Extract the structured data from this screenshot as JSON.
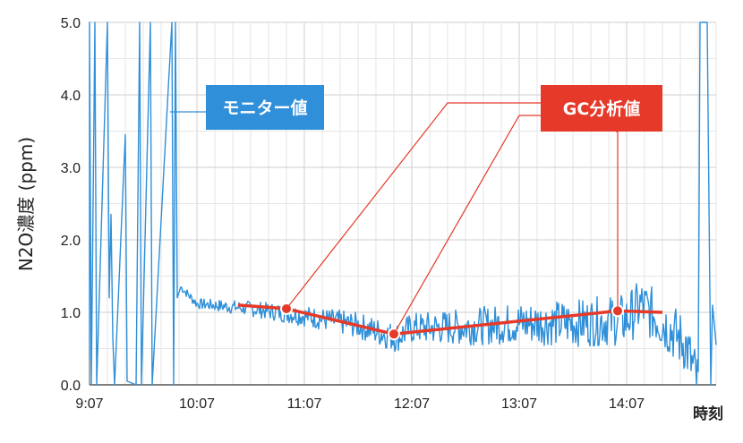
{
  "chart_data": {
    "type": "line",
    "xlabel": "時刻",
    "ylabel": "N2O濃度 (ppm)",
    "xlim": [
      "9:07",
      "14:57"
    ],
    "ylim": [
      0,
      5
    ],
    "x_ticks": [
      "9:07",
      "10:07",
      "11:07",
      "12:07",
      "13:07",
      "14:07"
    ],
    "y_ticks": [
      "0.0",
      "1.0",
      "2.0",
      "3.0",
      "4.0",
      "5.0"
    ],
    "grid": true,
    "series": [
      {
        "name": "モニター値",
        "color": "#2f8fd8",
        "points": [
          [
            "9:07",
            0.35
          ],
          [
            "9:07",
            5.0
          ],
          [
            "9:08",
            0.0
          ],
          [
            "9:10",
            5.0
          ],
          [
            "9:11",
            0.0
          ],
          [
            "9:17",
            5.0
          ],
          [
            "9:18",
            1.2
          ],
          [
            "9:19",
            2.35
          ],
          [
            "9:20",
            0.65
          ],
          [
            "9:21",
            0.0
          ],
          [
            "9:27",
            3.45
          ],
          [
            "9:28",
            0.05
          ],
          [
            "9:33",
            0.0
          ],
          [
            "9:35",
            5.0
          ],
          [
            "9:36",
            0.0
          ],
          [
            "9:41",
            5.0
          ],
          [
            "9:42",
            0.0
          ],
          [
            "9:53",
            5.0
          ],
          [
            "9:54",
            0.0
          ],
          [
            "9:55",
            5.0
          ],
          [
            "9:56",
            1.2
          ],
          [
            "9:58",
            1.35
          ],
          [
            "10:07",
            1.12
          ],
          [
            "10:37",
            1.05
          ],
          [
            "11:07",
            0.95
          ],
          [
            "11:37",
            0.82
          ],
          [
            "11:58",
            0.65
          ],
          [
            "12:07",
            0.78
          ],
          [
            "12:37",
            0.8
          ],
          [
            "13:07",
            0.85
          ],
          [
            "13:37",
            0.85
          ],
          [
            "14:07",
            0.9
          ],
          [
            "14:15",
            1.1
          ],
          [
            "14:30",
            0.8
          ],
          [
            "14:40",
            0.55
          ],
          [
            "14:47",
            0.0
          ],
          [
            "14:48",
            5.0
          ],
          [
            "14:52",
            5.0
          ],
          [
            "14:54",
            0.0
          ],
          [
            "14:55",
            1.1
          ],
          [
            "14:57",
            0.55
          ]
        ]
      },
      {
        "name": "GC分析値",
        "color": "#e53a2a",
        "points": [
          [
            "10:30",
            1.1
          ],
          [
            "10:57",
            1.05
          ],
          [
            "11:57",
            0.7
          ],
          [
            "14:02",
            1.02
          ],
          [
            "14:27",
            1.0
          ]
        ],
        "markers": [
          [
            "10:57",
            1.05
          ],
          [
            "11:57",
            0.7
          ],
          [
            "14:02",
            1.02
          ]
        ]
      }
    ],
    "annotations": [
      {
        "text": "モニター値",
        "color": "#2f8fd8"
      },
      {
        "text": "GC分析値",
        "color": "#e53a2a"
      }
    ]
  }
}
